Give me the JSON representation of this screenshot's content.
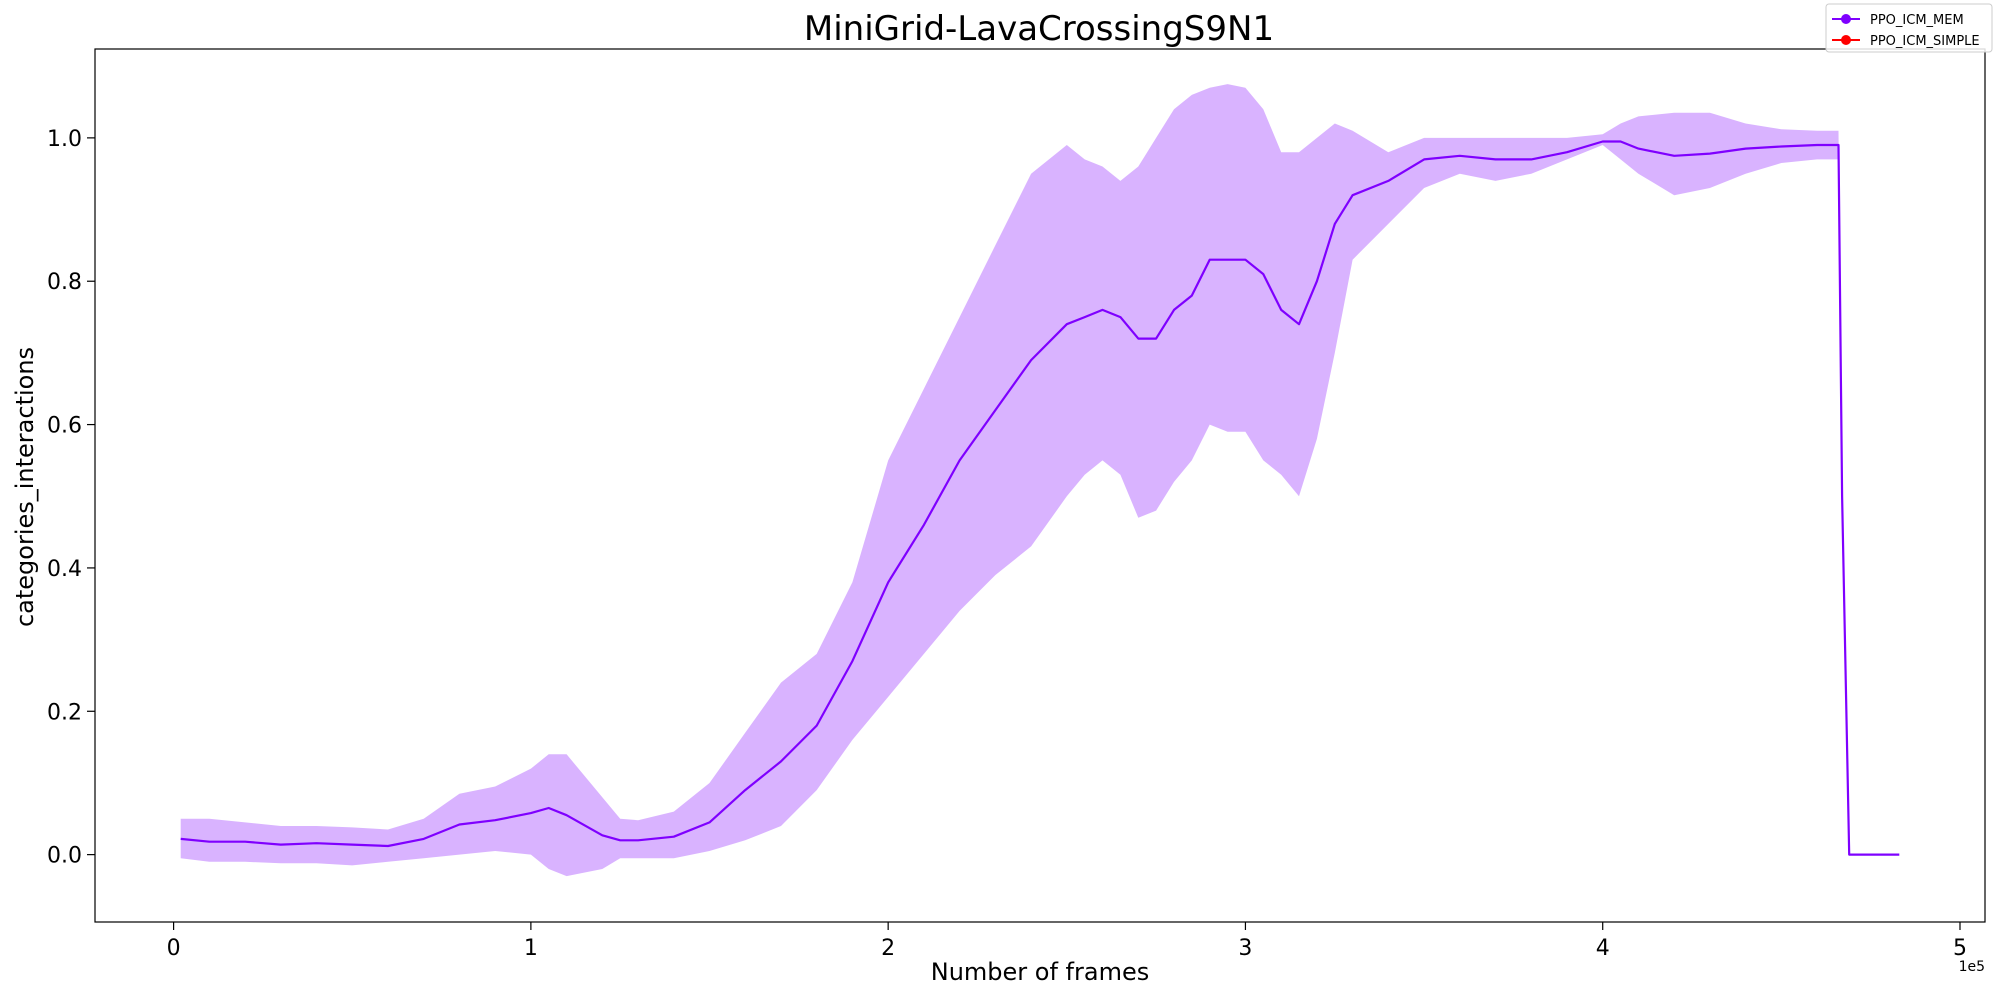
{
  "chart_data": {
    "type": "line",
    "title": "MiniGrid-LavaCrossingS9N1",
    "xlabel": "Number of frames",
    "ylabel": "categories_interactions",
    "x_offset_label": "1e5",
    "xlim": [
      -0.22,
      5.07
    ],
    "ylim": [
      -0.094,
      1.124
    ],
    "x_ticks": [
      0,
      1,
      2,
      3,
      4,
      5
    ],
    "x_tick_labels": [
      "0",
      "1",
      "2",
      "3",
      "4",
      "5"
    ],
    "y_ticks": [
      0.0,
      0.2,
      0.4,
      0.6,
      0.8,
      1.0
    ],
    "y_tick_labels": [
      "0.0",
      "0.2",
      "0.4",
      "0.6",
      "0.8",
      "1.0"
    ],
    "grid": false,
    "legend_position": "top-right",
    "series": [
      {
        "name": "PPO_ICM_MEM",
        "color": "#7f00ff",
        "band_color": "#d9b3ff",
        "x": [
          0.02,
          0.1,
          0.2,
          0.3,
          0.4,
          0.5,
          0.6,
          0.7,
          0.8,
          0.9,
          1.0,
          1.05,
          1.1,
          1.2,
          1.25,
          1.3,
          1.4,
          1.5,
          1.6,
          1.7,
          1.8,
          1.9,
          2.0,
          2.1,
          2.2,
          2.3,
          2.4,
          2.5,
          2.55,
          2.6,
          2.65,
          2.7,
          2.75,
          2.8,
          2.85,
          2.9,
          2.95,
          3.0,
          3.05,
          3.1,
          3.15,
          3.2,
          3.25,
          3.3,
          3.4,
          3.5,
          3.6,
          3.7,
          3.8,
          3.9,
          4.0,
          4.05,
          4.1,
          4.2,
          4.3,
          4.4,
          4.5,
          4.6,
          4.66,
          4.67,
          4.69,
          4.83
        ],
        "y": [
          0.022,
          0.018,
          0.018,
          0.014,
          0.016,
          0.014,
          0.012,
          0.022,
          0.042,
          0.048,
          0.058,
          0.065,
          0.055,
          0.027,
          0.02,
          0.02,
          0.025,
          0.045,
          0.09,
          0.13,
          0.18,
          0.27,
          0.38,
          0.46,
          0.55,
          0.62,
          0.69,
          0.74,
          0.75,
          0.76,
          0.75,
          0.72,
          0.72,
          0.76,
          0.78,
          0.83,
          0.83,
          0.83,
          0.81,
          0.76,
          0.74,
          0.8,
          0.88,
          0.92,
          0.94,
          0.97,
          0.975,
          0.97,
          0.97,
          0.98,
          0.995,
          0.995,
          0.985,
          0.975,
          0.978,
          0.985,
          0.988,
          0.99,
          0.99,
          0.5,
          0.0,
          0.0
        ],
        "lower": [
          -0.005,
          -0.01,
          -0.01,
          -0.012,
          -0.012,
          -0.015,
          -0.01,
          -0.005,
          0.0,
          0.005,
          0.0,
          -0.02,
          -0.03,
          -0.02,
          -0.005,
          -0.005,
          -0.005,
          0.005,
          0.02,
          0.04,
          0.09,
          0.16,
          0.22,
          0.28,
          0.34,
          0.39,
          0.43,
          0.5,
          0.53,
          0.55,
          0.53,
          0.47,
          0.48,
          0.52,
          0.55,
          0.6,
          0.59,
          0.59,
          0.55,
          0.53,
          0.5,
          0.58,
          0.7,
          0.83,
          0.88,
          0.93,
          0.95,
          0.94,
          0.95,
          0.97,
          0.99,
          0.97,
          0.95,
          0.92,
          0.93,
          0.95,
          0.965,
          0.97,
          0.97,
          0.5,
          0.0,
          0.0
        ],
        "upper": [
          0.05,
          0.05,
          0.045,
          0.04,
          0.04,
          0.038,
          0.035,
          0.05,
          0.085,
          0.095,
          0.12,
          0.14,
          0.14,
          0.08,
          0.05,
          0.048,
          0.06,
          0.1,
          0.17,
          0.24,
          0.28,
          0.38,
          0.55,
          0.65,
          0.75,
          0.85,
          0.95,
          0.99,
          0.97,
          0.96,
          0.94,
          0.96,
          1.0,
          1.04,
          1.06,
          1.07,
          1.075,
          1.07,
          1.04,
          0.98,
          0.98,
          1.0,
          1.02,
          1.01,
          0.98,
          1.0,
          1.0,
          1.0,
          1.0,
          1.0,
          1.005,
          1.02,
          1.03,
          1.035,
          1.035,
          1.02,
          1.012,
          1.01,
          1.01,
          0.5,
          0.0,
          0.0
        ]
      },
      {
        "name": "PPO_ICM_SIMPLE",
        "color": "#ff0000",
        "x": [],
        "y": []
      }
    ]
  }
}
